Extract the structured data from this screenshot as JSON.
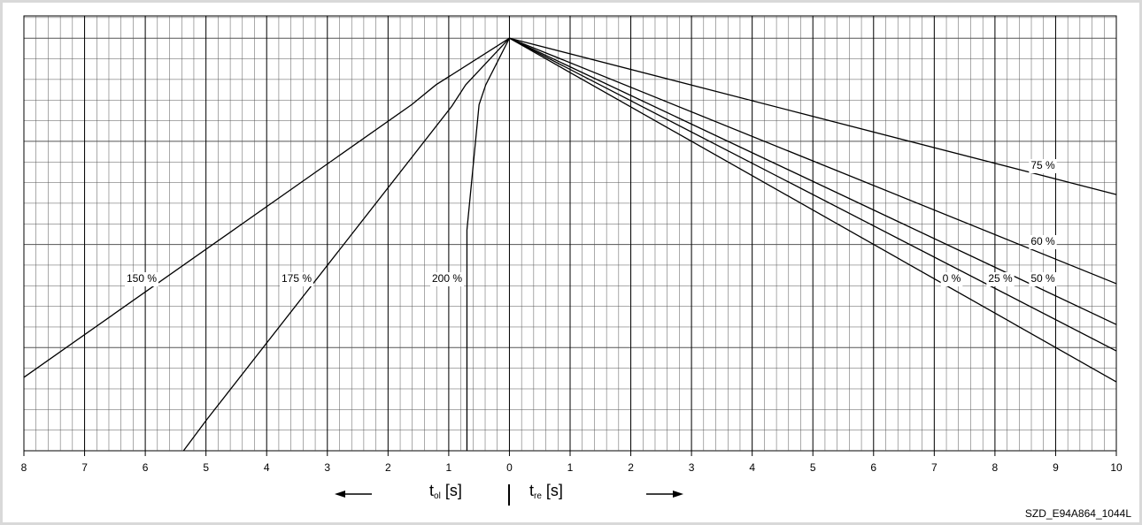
{
  "chart_data": {
    "type": "line",
    "xlim": [
      -8,
      10
    ],
    "ylim": [
      0,
      105.4
    ],
    "xticks": [
      {
        "value": -8,
        "label": "8"
      },
      {
        "value": -7,
        "label": "7"
      },
      {
        "value": -6,
        "label": "6"
      },
      {
        "value": -5,
        "label": "5"
      },
      {
        "value": -4,
        "label": "4"
      },
      {
        "value": -3,
        "label": "3"
      },
      {
        "value": -2,
        "label": "2"
      },
      {
        "value": -1,
        "label": "1"
      },
      0,
      1,
      2,
      3,
      4,
      5,
      6,
      7,
      8,
      9,
      10
    ],
    "grid": true,
    "x_label_left": {
      "base": "t",
      "sub": "ol",
      "unit": "[s]"
    },
    "x_label_right": {
      "base": "t",
      "sub": "re",
      "unit": "[s]"
    },
    "footnote": "SZD_E94A864_1044L",
    "series": [
      {
        "name": "150 %",
        "color": "#000000",
        "x": [
          -8,
          -1.61,
          -1.21,
          0
        ],
        "values": [
          17.8,
          83.9,
          88.7,
          100
        ]
      },
      {
        "name": "175 %",
        "color": "#000000",
        "x": [
          -5.37,
          -4.99,
          -0.95,
          -0.72,
          0
        ],
        "values": [
          0,
          7.5,
          83.5,
          88.7,
          100
        ]
      },
      {
        "name": "200 %",
        "color": "#000000",
        "x": [
          -0.7,
          -0.7,
          -0.5,
          -0.39,
          0
        ],
        "values": [
          0,
          53.5,
          83.9,
          88.7,
          100
        ]
      },
      {
        "name": "75 %",
        "color": "#000000",
        "x": [
          0,
          10
        ],
        "values": [
          100,
          62.1
        ]
      },
      {
        "name": "60 %",
        "color": "#000000",
        "x": [
          0,
          10
        ],
        "values": [
          100,
          40.5
        ]
      },
      {
        "name": "50 %",
        "color": "#000000",
        "x": [
          0,
          10
        ],
        "values": [
          100,
          30.6
        ]
      },
      {
        "name": "25 %",
        "color": "#000000",
        "x": [
          0,
          10
        ],
        "values": [
          100,
          24.2
        ]
      },
      {
        "name": "0 %",
        "color": "#000000",
        "x": [
          0,
          10
        ],
        "values": [
          100,
          16.7
        ]
      }
    ]
  }
}
